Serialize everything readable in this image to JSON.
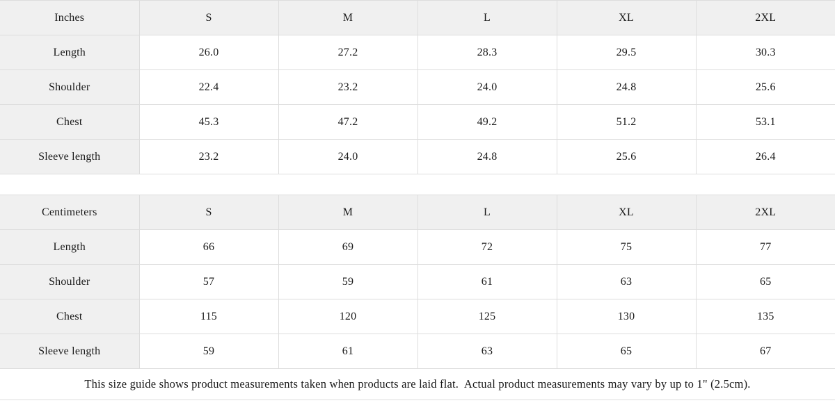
{
  "tables": [
    {
      "unit_label": "Inches",
      "sizes": [
        "S",
        "M",
        "L",
        "XL",
        "2XL"
      ],
      "rows": [
        {
          "label": "Length",
          "values": [
            "26.0",
            "27.2",
            "28.3",
            "29.5",
            "30.3"
          ]
        },
        {
          "label": "Shoulder",
          "values": [
            "22.4",
            "23.2",
            "24.0",
            "24.8",
            "25.6"
          ]
        },
        {
          "label": "Chest",
          "values": [
            "45.3",
            "47.2",
            "49.2",
            "51.2",
            "53.1"
          ]
        },
        {
          "label": "Sleeve length",
          "values": [
            "23.2",
            "24.0",
            "24.8",
            "25.6",
            "26.4"
          ]
        }
      ]
    },
    {
      "unit_label": "Centimeters",
      "sizes": [
        "S",
        "M",
        "L",
        "XL",
        "2XL"
      ],
      "rows": [
        {
          "label": "Length",
          "values": [
            "66",
            "69",
            "72",
            "75",
            "77"
          ]
        },
        {
          "label": "Shoulder",
          "values": [
            "57",
            "59",
            "61",
            "63",
            "65"
          ]
        },
        {
          "label": "Chest",
          "values": [
            "115",
            "120",
            "125",
            "130",
            "135"
          ]
        },
        {
          "label": "Sleeve length",
          "values": [
            "59",
            "61",
            "63",
            "65",
            "67"
          ]
        }
      ]
    }
  ],
  "footer_note": "This size guide shows product measurements taken when products are laid flat.  Actual product measurements may vary by up to 1\" (2.5cm).",
  "colors": {
    "header_bg": "#f0f0f0",
    "border": "#dddddd",
    "text": "#1a1a1a",
    "background": "#ffffff"
  }
}
